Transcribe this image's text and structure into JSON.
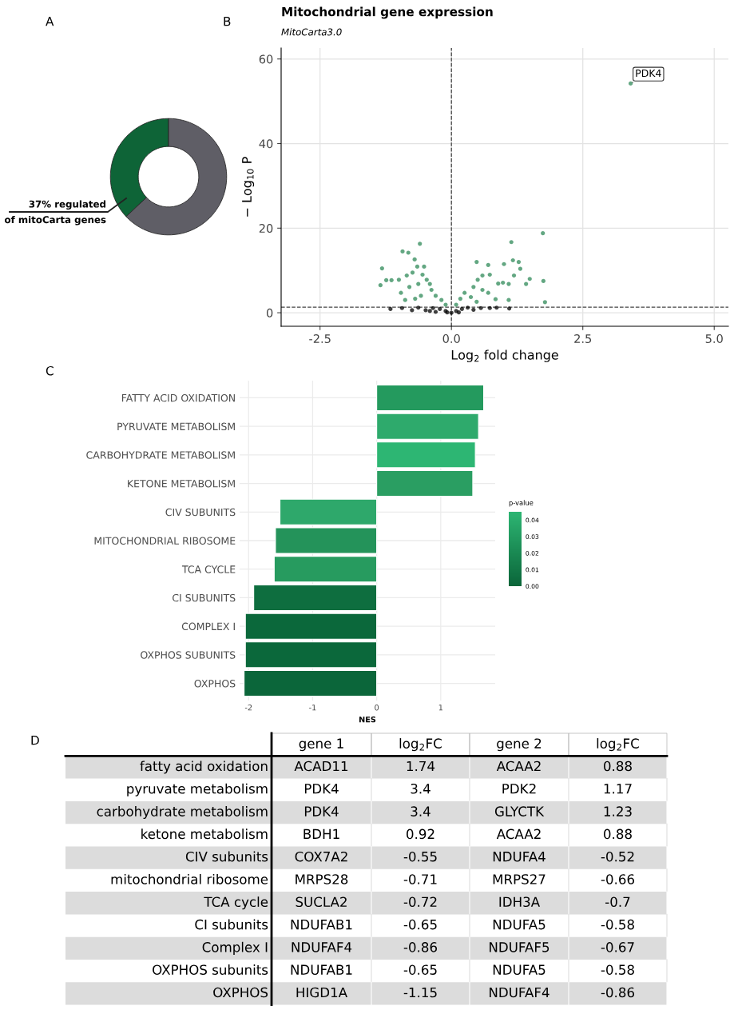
{
  "chart_data": [
    {
      "type": "donut",
      "categories": [
        null,
        null
      ],
      "values": [
        37,
        63
      ],
      "colors": [
        "#0e6437",
        "#5f5e66"
      ],
      "annotations": [
        "A",
        "37% regulated\nof mitoCarta genes"
      ]
    },
    {
      "type": "scatter",
      "title": "Mitochondrial gene expression",
      "subtitle": "MitoCarta3.0",
      "xlabel": "Log$_{2}$ fold change",
      "ylabel": "− Log$_{10}$ P",
      "series": [
        {
          "color": "#2f8a58",
          "x": [
            3.41,
            1.74,
            1.14,
            -0.6,
            -0.93,
            -0.82,
            -1.32,
            -1.35,
            -1.24,
            -1.14,
            -1.0,
            -0.7,
            -0.52,
            -0.74,
            -0.85,
            -0.96,
            -0.8,
            -0.63,
            -0.47,
            -0.38,
            -0.3,
            -0.19,
            -0.11,
            -0.58,
            -0.69,
            -0.88,
            -0.41,
            -0.55,
            -0.65,
            0.48,
            0.7,
            1.0,
            1.17,
            1.28,
            1.31,
            1.19,
            1.49,
            1.75,
            1.78,
            1.42,
            1.09,
            0.89,
            0.98,
            0.73,
            0.59,
            0.5,
            0.42,
            0.59,
            0.7,
            0.84,
            1.09,
            0.25,
            0.17,
            0.09,
            0.37,
            0.48
          ],
          "values": [
            54.2,
            18.8,
            16.7,
            16.3,
            14.5,
            14.2,
            10.5,
            6.5,
            7.7,
            7.7,
            7.8,
            12.6,
            10.9,
            9.5,
            8.8,
            4.7,
            6.1,
            6.8,
            7.8,
            5.4,
            4.0,
            3.0,
            1.9,
            4.0,
            3.3,
            3.0,
            6.8,
            9.0,
            10.9,
            12.0,
            11.3,
            11.5,
            12.4,
            12.0,
            10.4,
            8.8,
            8.0,
            7.5,
            2.5,
            6.8,
            6.8,
            6.9,
            7.1,
            9.0,
            8.8,
            7.8,
            6.1,
            5.4,
            4.7,
            3.2,
            3.0,
            4.7,
            3.3,
            1.9,
            3.7,
            2.6
          ]
        },
        {
          "color": "#000000",
          "x": [
            -1.16,
            -0.94,
            -0.75,
            -0.63,
            -0.49,
            -0.35,
            -0.22,
            -0.11,
            0.0,
            0.09,
            0.2,
            0.31,
            0.42,
            0.56,
            0.73,
            0.86,
            1.1,
            -0.3,
            -0.41,
            -0.08,
            0.14
          ],
          "values": [
            0.9,
            1.1,
            0.6,
            1.2,
            0.6,
            1.1,
            0.9,
            0.4,
            0.0,
            0.4,
            0.9,
            1.2,
            0.7,
            1.1,
            1.1,
            1.2,
            1.0,
            0.2,
            0.4,
            0.1,
            0.1
          ]
        }
      ],
      "marker": "circle",
      "xlim": [
        -3.24,
        5.27
      ],
      "ylim": [
        -3.2,
        62.6
      ],
      "xticks": [
        {
          "value": -2.5,
          "label": "-2.5"
        },
        {
          "value": 0,
          "label": "0.0"
        },
        {
          "value": 2.5,
          "label": "2.5"
        },
        {
          "value": 5,
          "label": "5.0"
        }
      ],
      "yticks": [
        0,
        20,
        40,
        60
      ],
      "grid": true,
      "ref_lines": [
        {
          "axis": "x",
          "value": 0,
          "line_style": "dashed",
          "color": "#444444"
        },
        {
          "axis": "y",
          "value": 1.3,
          "line_style": "dashed",
          "color": "#444444"
        }
      ],
      "annotations": [
        "B",
        {
          "text": "PDK4",
          "x": 3.41,
          "y": 54.2
        }
      ]
    },
    {
      "type": "bar",
      "orientation": "horizontal",
      "xlabel": "NES",
      "clabel": "p-value",
      "categories": [
        "FATTY ACID OXIDATION",
        "PYRUVATE METABOLISM",
        "CARBOHYDRATE METABOLISM",
        "KETONE METABOLISM",
        "CIV SUBUNITS",
        "MITOCHONDRIAL RIBOSOME",
        "TCA CYCLE",
        "CI SUBUNITS",
        "COMPLEX I",
        "OXPHOS SUBUNITS",
        "OXPHOS"
      ],
      "values": [
        1.67,
        1.59,
        1.54,
        1.5,
        -1.51,
        -1.58,
        -1.6,
        -1.92,
        -2.05,
        -2.05,
        -2.07
      ],
      "colors": [
        "#249a5e",
        "#2eaa6c",
        "#2db673",
        "#2a9e62",
        "#2ea86b",
        "#24935a",
        "#279b5f",
        "#0e6e3f",
        "#0b683b",
        "#0b683b",
        "#0b663a"
      ],
      "xlim": [
        -2.14,
        1.85
      ],
      "xticks": [
        -2,
        -1,
        0,
        1
      ],
      "clim": [
        0,
        0.045
      ],
      "cticks": [
        {
          "value": 0,
          "label": "0.00"
        },
        {
          "value": 0.01,
          "label": "0.01"
        },
        {
          "value": 0.02,
          "label": "0.02"
        },
        {
          "value": 0.03,
          "label": "0.03"
        },
        {
          "value": 0.04,
          "label": "0.04"
        }
      ],
      "grid": true,
      "annotations": [
        "C"
      ]
    },
    {
      "type": "other",
      "categories": [
        "gene 1",
        "log$_{2}$FC",
        "gene 2",
        "log$_{2}$FC"
      ],
      "y_categories": [
        "fatty acid oxidation",
        "pyruvate metabolism",
        "carbohydrate metabolism",
        "ketone metabolism",
        "CIV subunits",
        "mitochondrial ribosome",
        "TCA cycle",
        "CI subunits",
        "Complex I",
        "OXPHOS subunits",
        "OXPHOS"
      ],
      "cell_labels": [
        [
          "ACAD11",
          "1.74",
          "ACAA2",
          "0.88"
        ],
        [
          "PDK4",
          "3.4",
          "PDK2",
          "1.17"
        ],
        [
          "PDK4",
          "3.4",
          "GLYCTK",
          "1.23"
        ],
        [
          "BDH1",
          "0.92",
          "ACAA2",
          "0.88"
        ],
        [
          "COX7A2",
          "-0.55",
          "NDUFA4",
          "-0.52"
        ],
        [
          "MRPS28",
          "-0.71",
          "MRPS27",
          "-0.66"
        ],
        [
          "SUCLA2",
          "-0.72",
          "IDH3A",
          "-0.7"
        ],
        [
          "NDUFAB1",
          "-0.65",
          "NDUFA5",
          "-0.58"
        ],
        [
          "NDUFAF4",
          "-0.86",
          "NDUFAF5",
          "-0.67"
        ],
        [
          "NDUFAB1",
          "-0.65",
          "NDUFA5",
          "-0.58"
        ],
        [
          "HIGD1A",
          "-1.15",
          "NDUFAF4",
          "-0.86"
        ]
      ],
      "annotations": [
        "D"
      ]
    }
  ]
}
